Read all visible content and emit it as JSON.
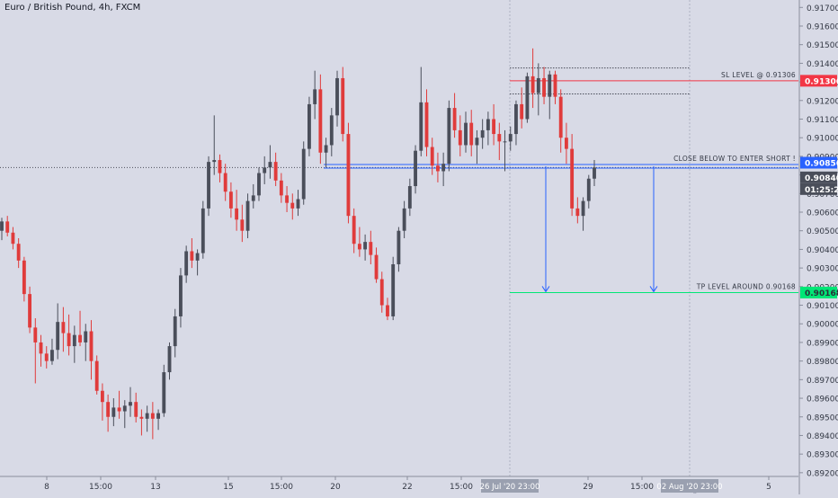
{
  "header": {
    "symbol_title": "Euro / British Pound, 4h, FXCM"
  },
  "chart_data": {
    "type": "candlestick",
    "price_axis": {
      "ticks": [
        "0.91700",
        "0.91600",
        "0.91500",
        "0.91400",
        "0.91300",
        "0.91200",
        "0.91100",
        "0.91000",
        "0.90900",
        "0.90800",
        "0.90700",
        "0.90600",
        "0.90500",
        "0.90400",
        "0.90300",
        "0.90200",
        "0.90100",
        "0.90000",
        "0.89900",
        "0.89800",
        "0.89700",
        "0.89600",
        "0.89500",
        "0.89400",
        "0.89300",
        "0.89200"
      ],
      "ylim": [
        0.8918,
        0.9174
      ]
    },
    "time_axis": {
      "ticks": [
        "8",
        "15:00",
        "13",
        "15",
        "15:00",
        "20",
        "22",
        "15:00",
        "29",
        "15:00",
        "5"
      ],
      "highlighted_ticks": [
        "26 Jul '20  23:00",
        "02 Aug '20  23:00"
      ],
      "faint_label": "Aug"
    },
    "price_labels": {
      "sl": "0.91306",
      "entry": "0.90856",
      "last": "0.90840",
      "countdown": "01:25:26",
      "tp": "0.90168"
    },
    "annotations": {
      "sl_text": "SL LEVEL @ 0.91306",
      "entry_text": "CLOSE BELOW TO ENTER SHORT !",
      "tp_text": "TP LEVEL AROUND 0.90168"
    },
    "levels": {
      "sl": 0.91306,
      "entry": 0.90856,
      "entry2": 0.9084,
      "tp": 0.90168,
      "range_top": 0.91375,
      "range_bottom": 0.91235,
      "last": 0.9084
    },
    "colors": {
      "up": "#4a4e5a",
      "down": "#e03b3b",
      "sl": "#f23645",
      "entry": "#2962ff",
      "tp": "#00e676"
    },
    "candles": [
      {
        "o": 0.905,
        "h": 0.9057,
        "l": 0.9045,
        "c": 0.9055
      },
      {
        "o": 0.9055,
        "h": 0.9058,
        "l": 0.9047,
        "c": 0.9049
      },
      {
        "o": 0.9049,
        "h": 0.9052,
        "l": 0.904,
        "c": 0.9043
      },
      {
        "o": 0.9043,
        "h": 0.9046,
        "l": 0.903,
        "c": 0.9034
      },
      {
        "o": 0.9034,
        "h": 0.9036,
        "l": 0.9012,
        "c": 0.9016
      },
      {
        "o": 0.9016,
        "h": 0.902,
        "l": 0.8995,
        "c": 0.8998
      },
      {
        "o": 0.8998,
        "h": 0.9003,
        "l": 0.8968,
        "c": 0.899
      },
      {
        "o": 0.899,
        "h": 0.8994,
        "l": 0.8977,
        "c": 0.8984
      },
      {
        "o": 0.8984,
        "h": 0.8988,
        "l": 0.8976,
        "c": 0.898
      },
      {
        "o": 0.898,
        "h": 0.8992,
        "l": 0.8978,
        "c": 0.8986
      },
      {
        "o": 0.8986,
        "h": 0.9011,
        "l": 0.8981,
        "c": 0.9001
      },
      {
        "o": 0.9001,
        "h": 0.9009,
        "l": 0.8985,
        "c": 0.8995
      },
      {
        "o": 0.8995,
        "h": 0.9005,
        "l": 0.8983,
        "c": 0.8988
      },
      {
        "o": 0.8988,
        "h": 0.8999,
        "l": 0.8979,
        "c": 0.8994
      },
      {
        "o": 0.8994,
        "h": 0.9007,
        "l": 0.8988,
        "c": 0.899
      },
      {
        "o": 0.899,
        "h": 0.9,
        "l": 0.898,
        "c": 0.8996
      },
      {
        "o": 0.8996,
        "h": 0.9002,
        "l": 0.897,
        "c": 0.898
      },
      {
        "o": 0.898,
        "h": 0.8983,
        "l": 0.8962,
        "c": 0.8964
      },
      {
        "o": 0.8964,
        "h": 0.8968,
        "l": 0.8948,
        "c": 0.8958
      },
      {
        "o": 0.8958,
        "h": 0.8962,
        "l": 0.8942,
        "c": 0.895
      },
      {
        "o": 0.895,
        "h": 0.896,
        "l": 0.8945,
        "c": 0.8955
      },
      {
        "o": 0.8955,
        "h": 0.8964,
        "l": 0.8949,
        "c": 0.8953
      },
      {
        "o": 0.8953,
        "h": 0.8959,
        "l": 0.8944,
        "c": 0.8956
      },
      {
        "o": 0.8956,
        "h": 0.8966,
        "l": 0.895,
        "c": 0.8958
      },
      {
        "o": 0.8958,
        "h": 0.8963,
        "l": 0.8947,
        "c": 0.895
      },
      {
        "o": 0.895,
        "h": 0.8954,
        "l": 0.894,
        "c": 0.8949
      },
      {
        "o": 0.8949,
        "h": 0.8956,
        "l": 0.8942,
        "c": 0.8952
      },
      {
        "o": 0.8952,
        "h": 0.8958,
        "l": 0.8938,
        "c": 0.8949
      },
      {
        "o": 0.8949,
        "h": 0.8954,
        "l": 0.8943,
        "c": 0.8952
      },
      {
        "o": 0.8952,
        "h": 0.8978,
        "l": 0.895,
        "c": 0.8974
      },
      {
        "o": 0.8974,
        "h": 0.899,
        "l": 0.897,
        "c": 0.8988
      },
      {
        "o": 0.8988,
        "h": 0.9008,
        "l": 0.8982,
        "c": 0.9004
      },
      {
        "o": 0.9004,
        "h": 0.903,
        "l": 0.8998,
        "c": 0.9026
      },
      {
        "o": 0.9026,
        "h": 0.9042,
        "l": 0.9022,
        "c": 0.9039
      },
      {
        "o": 0.9039,
        "h": 0.9046,
        "l": 0.903,
        "c": 0.9034
      },
      {
        "o": 0.9034,
        "h": 0.904,
        "l": 0.9026,
        "c": 0.9038
      },
      {
        "o": 0.9038,
        "h": 0.9066,
        "l": 0.9035,
        "c": 0.9062
      },
      {
        "o": 0.9062,
        "h": 0.909,
        "l": 0.9058,
        "c": 0.9087
      },
      {
        "o": 0.9087,
        "h": 0.9112,
        "l": 0.908,
        "c": 0.9088
      },
      {
        "o": 0.9088,
        "h": 0.9091,
        "l": 0.9076,
        "c": 0.9081
      },
      {
        "o": 0.9081,
        "h": 0.9086,
        "l": 0.9066,
        "c": 0.9071
      },
      {
        "o": 0.9071,
        "h": 0.9076,
        "l": 0.9057,
        "c": 0.9062
      },
      {
        "o": 0.9062,
        "h": 0.9072,
        "l": 0.905,
        "c": 0.9056
      },
      {
        "o": 0.9056,
        "h": 0.9064,
        "l": 0.9044,
        "c": 0.905
      },
      {
        "o": 0.905,
        "h": 0.907,
        "l": 0.9046,
        "c": 0.9066
      },
      {
        "o": 0.9066,
        "h": 0.9075,
        "l": 0.9062,
        "c": 0.9069
      },
      {
        "o": 0.9069,
        "h": 0.9084,
        "l": 0.9066,
        "c": 0.9081
      },
      {
        "o": 0.9081,
        "h": 0.909,
        "l": 0.9075,
        "c": 0.9084
      },
      {
        "o": 0.9084,
        "h": 0.9096,
        "l": 0.9078,
        "c": 0.9087
      },
      {
        "o": 0.9087,
        "h": 0.9092,
        "l": 0.9074,
        "c": 0.9077
      },
      {
        "o": 0.9077,
        "h": 0.9081,
        "l": 0.9065,
        "c": 0.9069
      },
      {
        "o": 0.9069,
        "h": 0.9074,
        "l": 0.906,
        "c": 0.9065
      },
      {
        "o": 0.9065,
        "h": 0.907,
        "l": 0.9056,
        "c": 0.9062
      },
      {
        "o": 0.9062,
        "h": 0.9072,
        "l": 0.9058,
        "c": 0.9067
      },
      {
        "o": 0.9067,
        "h": 0.9098,
        "l": 0.9064,
        "c": 0.9094
      },
      {
        "o": 0.9094,
        "h": 0.9122,
        "l": 0.909,
        "c": 0.9118
      },
      {
        "o": 0.9118,
        "h": 0.9136,
        "l": 0.911,
        "c": 0.9126
      },
      {
        "o": 0.9126,
        "h": 0.9134,
        "l": 0.9086,
        "c": 0.9092
      },
      {
        "o": 0.9092,
        "h": 0.91,
        "l": 0.9084,
        "c": 0.9096
      },
      {
        "o": 0.9096,
        "h": 0.9116,
        "l": 0.909,
        "c": 0.9112
      },
      {
        "o": 0.9112,
        "h": 0.9136,
        "l": 0.9106,
        "c": 0.9132
      },
      {
        "o": 0.9132,
        "h": 0.9138,
        "l": 0.9098,
        "c": 0.9102
      },
      {
        "o": 0.9102,
        "h": 0.9108,
        "l": 0.9054,
        "c": 0.9058
      },
      {
        "o": 0.9058,
        "h": 0.9062,
        "l": 0.9038,
        "c": 0.9043
      },
      {
        "o": 0.9043,
        "h": 0.9052,
        "l": 0.9036,
        "c": 0.904
      },
      {
        "o": 0.904,
        "h": 0.9048,
        "l": 0.9034,
        "c": 0.9044
      },
      {
        "o": 0.9044,
        "h": 0.905,
        "l": 0.9032,
        "c": 0.9037
      },
      {
        "o": 0.9037,
        "h": 0.9041,
        "l": 0.9022,
        "c": 0.9024
      },
      {
        "o": 0.9024,
        "h": 0.9028,
        "l": 0.9006,
        "c": 0.901
      },
      {
        "o": 0.901,
        "h": 0.9014,
        "l": 0.9002,
        "c": 0.9004
      },
      {
        "o": 0.9004,
        "h": 0.9036,
        "l": 0.9002,
        "c": 0.9032
      },
      {
        "o": 0.9032,
        "h": 0.9052,
        "l": 0.9028,
        "c": 0.905
      },
      {
        "o": 0.905,
        "h": 0.9066,
        "l": 0.9046,
        "c": 0.9062
      },
      {
        "o": 0.9062,
        "h": 0.9078,
        "l": 0.9058,
        "c": 0.9074
      },
      {
        "o": 0.9074,
        "h": 0.9096,
        "l": 0.907,
        "c": 0.9093
      },
      {
        "o": 0.9093,
        "h": 0.9138,
        "l": 0.909,
        "c": 0.9119
      },
      {
        "o": 0.9119,
        "h": 0.9126,
        "l": 0.909,
        "c": 0.9095
      },
      {
        "o": 0.9095,
        "h": 0.91,
        "l": 0.908,
        "c": 0.9085
      },
      {
        "o": 0.9085,
        "h": 0.9092,
        "l": 0.9076,
        "c": 0.9082
      },
      {
        "o": 0.9082,
        "h": 0.9092,
        "l": 0.9074,
        "c": 0.9086
      },
      {
        "o": 0.9086,
        "h": 0.912,
        "l": 0.9082,
        "c": 0.9116
      },
      {
        "o": 0.9116,
        "h": 0.9124,
        "l": 0.91,
        "c": 0.9104
      },
      {
        "o": 0.9104,
        "h": 0.9112,
        "l": 0.909,
        "c": 0.9096
      },
      {
        "o": 0.9096,
        "h": 0.9114,
        "l": 0.9092,
        "c": 0.9108
      },
      {
        "o": 0.9108,
        "h": 0.9115,
        "l": 0.909,
        "c": 0.9096
      },
      {
        "o": 0.9096,
        "h": 0.9104,
        "l": 0.9086,
        "c": 0.91
      },
      {
        "o": 0.91,
        "h": 0.911,
        "l": 0.9094,
        "c": 0.9104
      },
      {
        "o": 0.9104,
        "h": 0.9114,
        "l": 0.9096,
        "c": 0.911
      },
      {
        "o": 0.911,
        "h": 0.9118,
        "l": 0.9096,
        "c": 0.9102
      },
      {
        "o": 0.9102,
        "h": 0.9108,
        "l": 0.9088,
        "c": 0.9098
      },
      {
        "o": 0.9098,
        "h": 0.9104,
        "l": 0.9082,
        "c": 0.9098
      },
      {
        "o": 0.9098,
        "h": 0.9106,
        "l": 0.9093,
        "c": 0.9102
      },
      {
        "o": 0.9102,
        "h": 0.912,
        "l": 0.9096,
        "c": 0.9118
      },
      {
        "o": 0.9118,
        "h": 0.9127,
        "l": 0.9105,
        "c": 0.911
      },
      {
        "o": 0.911,
        "h": 0.9135,
        "l": 0.9108,
        "c": 0.9133
      },
      {
        "o": 0.9133,
        "h": 0.9148,
        "l": 0.9116,
        "c": 0.9124
      },
      {
        "o": 0.9124,
        "h": 0.914,
        "l": 0.9112,
        "c": 0.9132
      },
      {
        "o": 0.9132,
        "h": 0.9138,
        "l": 0.9118,
        "c": 0.9122
      },
      {
        "o": 0.9122,
        "h": 0.9136,
        "l": 0.911,
        "c": 0.9134
      },
      {
        "o": 0.9134,
        "h": 0.9136,
        "l": 0.9118,
        "c": 0.9122
      },
      {
        "o": 0.9122,
        "h": 0.9126,
        "l": 0.9092,
        "c": 0.91
      },
      {
        "o": 0.91,
        "h": 0.9108,
        "l": 0.9086,
        "c": 0.9094
      },
      {
        "o": 0.9094,
        "h": 0.9102,
        "l": 0.9058,
        "c": 0.9062
      },
      {
        "o": 0.9062,
        "h": 0.9068,
        "l": 0.9054,
        "c": 0.9058
      },
      {
        "o": 0.9058,
        "h": 0.9068,
        "l": 0.905,
        "c": 0.9066
      },
      {
        "o": 0.9066,
        "h": 0.908,
        "l": 0.9062,
        "c": 0.9078
      },
      {
        "o": 0.9078,
        "h": 0.9088,
        "l": 0.9074,
        "c": 0.9084
      }
    ]
  }
}
